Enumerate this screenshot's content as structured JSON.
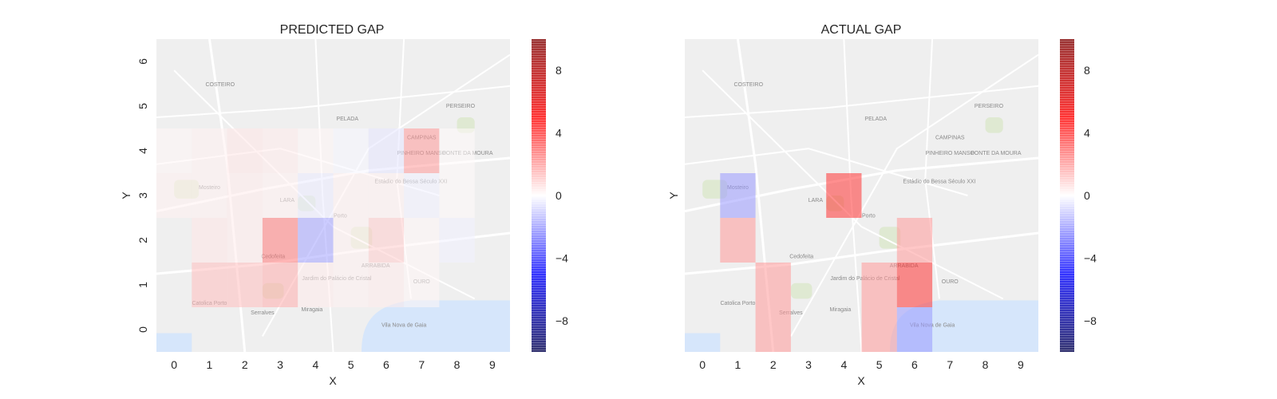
{
  "colors": {
    "colormap": "seismic",
    "map_land": "#efefef",
    "map_water": "#d6e6fb",
    "map_park": "#dfe9d2",
    "road": "#ffffff",
    "text": "#262626"
  },
  "map": {
    "labels": [
      "COSTEIRO",
      "PELADA",
      "PERSEIRO",
      "CAMPINAS",
      "PINHEIRO MANSO",
      "PONTE DA MOURA",
      "LARA",
      "Porto",
      "Cedofeita",
      "Jardim do Palácio de Cristal",
      "ARRABIDA",
      "OURO",
      "Estádio do Bessa Século XXI",
      "Catolica Porto",
      "Serralves",
      "Miragaia",
      "Vila Nova de Gaia",
      "Mosteiro"
    ]
  },
  "chart_data": [
    {
      "type": "heatmap",
      "title": "PREDICTED GAP",
      "xlabel": "X",
      "ylabel": "Y",
      "x_ticks": [
        "0",
        "1",
        "2",
        "3",
        "4",
        "5",
        "6",
        "7",
        "8",
        "9"
      ],
      "y_ticks": [
        "0",
        "1",
        "2",
        "3",
        "4",
        "5",
        "6"
      ],
      "xlim": [
        -0.5,
        9.5
      ],
      "ylim": [
        -0.5,
        6.5
      ],
      "colorbar": {
        "vmin": -10,
        "vmax": 10,
        "ticks": [
          8,
          4,
          0,
          -4,
          -8
        ],
        "tick_labels": [
          "8",
          "4",
          "0",
          "−4",
          "−8"
        ]
      },
      "cells": [
        {
          "x": 0,
          "y": 4,
          "value": 0.2
        },
        {
          "x": 1,
          "y": 4,
          "value": 0.3
        },
        {
          "x": 2,
          "y": 4,
          "value": 0.5
        },
        {
          "x": 3,
          "y": 4,
          "value": 0.4
        },
        {
          "x": 4,
          "y": 4,
          "value": 0.2
        },
        {
          "x": 5,
          "y": 4,
          "value": -0.2
        },
        {
          "x": 6,
          "y": 4,
          "value": -0.5
        },
        {
          "x": 7,
          "y": 4,
          "value": 2.0
        },
        {
          "x": 8,
          "y": 4,
          "value": 0.1
        },
        {
          "x": 0,
          "y": 3,
          "value": 0.3
        },
        {
          "x": 1,
          "y": 3,
          "value": 0.3
        },
        {
          "x": 2,
          "y": 3,
          "value": 0.4
        },
        {
          "x": 3,
          "y": 3,
          "value": 0.3
        },
        {
          "x": 4,
          "y": 3,
          "value": -0.4
        },
        {
          "x": 5,
          "y": 3,
          "value": 0.3
        },
        {
          "x": 6,
          "y": 3,
          "value": 0.3
        },
        {
          "x": 7,
          "y": 3,
          "value": -0.3
        },
        {
          "x": 8,
          "y": 3,
          "value": 0.1
        },
        {
          "x": 1,
          "y": 2,
          "value": 0.5
        },
        {
          "x": 2,
          "y": 2,
          "value": 0.4
        },
        {
          "x": 3,
          "y": 2,
          "value": 2.6
        },
        {
          "x": 4,
          "y": 2,
          "value": -1.8
        },
        {
          "x": 5,
          "y": 2,
          "value": 0.3
        },
        {
          "x": 6,
          "y": 2,
          "value": 1.0
        },
        {
          "x": 7,
          "y": 2,
          "value": 0.2
        },
        {
          "x": 8,
          "y": 2,
          "value": -0.3
        },
        {
          "x": 1,
          "y": 1,
          "value": 1.3
        },
        {
          "x": 2,
          "y": 1,
          "value": 1.3
        },
        {
          "x": 3,
          "y": 1,
          "value": 1.6
        },
        {
          "x": 4,
          "y": 1,
          "value": 0.4
        },
        {
          "x": 5,
          "y": 1,
          "value": 0.3
        },
        {
          "x": 6,
          "y": 1,
          "value": 0.4
        },
        {
          "x": 7,
          "y": 1,
          "value": 0.2
        }
      ]
    },
    {
      "type": "heatmap",
      "title": "ACTUAL GAP",
      "xlabel": "X",
      "ylabel": "Y",
      "x_ticks": [
        "0",
        "1",
        "2",
        "3",
        "4",
        "5",
        "6",
        "7",
        "8",
        "9"
      ],
      "y_ticks": [],
      "xlim": [
        -0.5,
        9.5
      ],
      "ylim": [
        -0.5,
        6.5
      ],
      "colorbar": {
        "vmin": -10,
        "vmax": 10,
        "ticks": [
          8,
          4,
          0,
          -4,
          -8
        ],
        "tick_labels": [
          "8",
          "4",
          "0",
          "−4",
          "−8"
        ]
      },
      "cells": [
        {
          "x": 1,
          "y": 3,
          "value": -2.0
        },
        {
          "x": 4,
          "y": 3,
          "value": 4.0
        },
        {
          "x": 1,
          "y": 2,
          "value": 2.0
        },
        {
          "x": 6,
          "y": 2,
          "value": 2.0
        },
        {
          "x": 2,
          "y": 1,
          "value": 2.0
        },
        {
          "x": 5,
          "y": 1,
          "value": 2.0
        },
        {
          "x": 6,
          "y": 1,
          "value": 4.0
        },
        {
          "x": 2,
          "y": 0,
          "value": 2.0
        },
        {
          "x": 5,
          "y": 0,
          "value": 2.0
        },
        {
          "x": 6,
          "y": 0,
          "value": -2.0
        }
      ]
    }
  ]
}
